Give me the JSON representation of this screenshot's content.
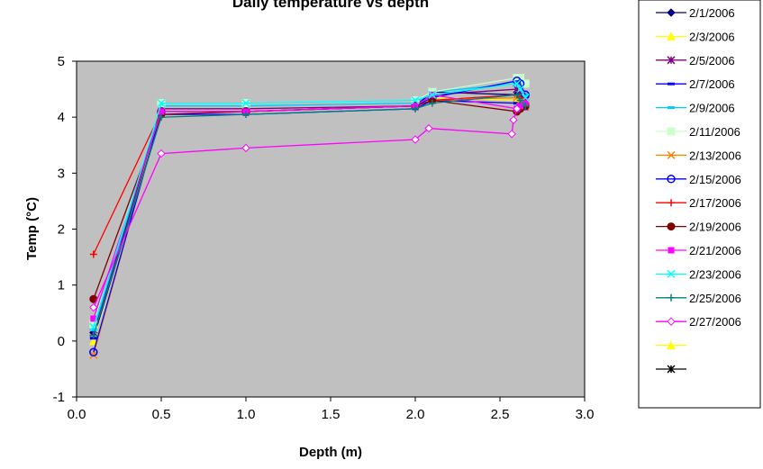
{
  "chart_data": {
    "type": "line",
    "title": "Daily temperature vs depth",
    "xlabel": "Depth (m)",
    "ylabel": "Temp (°C)",
    "xlim": [
      0,
      3
    ],
    "ylim": [
      -1,
      5
    ],
    "x_ticks": [
      "0.0",
      "0.5",
      "1.0",
      "1.5",
      "2.0",
      "2.5",
      "3.0"
    ],
    "y_ticks": [
      "-1",
      "0",
      "1",
      "2",
      "3",
      "4",
      "5"
    ],
    "plot_background": "#c0c0c0",
    "gridlines": false,
    "legend_position": "right",
    "series": [
      {
        "name": "2/1/2006",
        "color": "#000080",
        "marker": "diamond",
        "x": [
          0.1,
          0.5,
          1.0,
          2.0,
          2.1,
          2.6,
          2.62,
          2.65
        ],
        "y": [
          0.15,
          4.1,
          4.1,
          4.2,
          4.45,
          4.4,
          4.3,
          4.25
        ]
      },
      {
        "name": "2/3/2006",
        "color": "#ffff00",
        "marker": "triangle",
        "x": [
          0.1,
          0.5,
          1.0,
          2.0,
          2.1,
          2.6,
          2.62,
          2.65
        ],
        "y": [
          0.0,
          4.1,
          4.1,
          4.2,
          4.35,
          4.3,
          4.3,
          4.2
        ]
      },
      {
        "name": "2/5/2006",
        "color": "#800080",
        "marker": "asterisk",
        "x": [
          0.1,
          0.5,
          1.0,
          2.0,
          2.1,
          2.6,
          2.62,
          2.65
        ],
        "y": [
          0.15,
          4.15,
          4.15,
          4.2,
          4.4,
          4.5,
          4.4,
          4.3
        ]
      },
      {
        "name": "2/7/2006",
        "color": "#0000ff",
        "marker": "dash",
        "x": [
          0.1,
          0.5,
          1.0,
          2.0,
          2.1,
          2.6,
          2.62,
          2.65
        ],
        "y": [
          0.05,
          4.05,
          4.05,
          4.15,
          4.3,
          4.25,
          4.2,
          4.15
        ]
      },
      {
        "name": "2/9/2006",
        "color": "#00ccff",
        "marker": "dash",
        "x": [
          0.1,
          0.5,
          1.0,
          2.0,
          2.1,
          2.6,
          2.62,
          2.65
        ],
        "y": [
          0.2,
          4.2,
          4.2,
          4.25,
          4.45,
          4.6,
          4.55,
          4.4
        ]
      },
      {
        "name": "2/11/2006",
        "color": "#ccffcc",
        "marker": "square",
        "x": [
          0.1,
          0.5,
          1.0,
          2.0,
          2.1,
          2.6,
          2.62,
          2.65
        ],
        "y": [
          0.3,
          4.25,
          4.25,
          4.3,
          4.45,
          4.7,
          4.7,
          4.6
        ]
      },
      {
        "name": "2/13/2006",
        "color": "#ff8000",
        "marker": "x",
        "x": [
          0.1,
          0.5,
          1.0,
          2.0,
          2.1,
          2.6,
          2.62,
          2.65
        ],
        "y": [
          -0.25,
          4.1,
          4.1,
          4.2,
          4.3,
          4.35,
          4.3,
          4.2
        ]
      },
      {
        "name": "2/15/2006",
        "color": "#0000ff",
        "marker": "circle",
        "x": [
          0.1,
          0.5,
          1.0,
          2.0,
          2.1,
          2.6,
          2.62,
          2.65
        ],
        "y": [
          -0.2,
          4.1,
          4.1,
          4.2,
          4.35,
          4.65,
          4.6,
          4.4
        ]
      },
      {
        "name": "2/17/2006",
        "color": "#ff0000",
        "marker": "plus",
        "x": [
          0.1,
          0.5,
          1.0,
          2.0,
          2.1,
          2.6,
          2.62,
          2.65
        ],
        "y": [
          1.55,
          4.1,
          4.1,
          4.2,
          4.3,
          4.4,
          4.35,
          4.3
        ]
      },
      {
        "name": "2/19/2006",
        "color": "#800000",
        "marker": "circle-filled",
        "x": [
          0.1,
          0.5,
          1.0,
          2.0,
          2.1,
          2.6,
          2.62,
          2.65
        ],
        "y": [
          0.75,
          4.05,
          4.1,
          4.2,
          4.3,
          4.1,
          4.15,
          4.2
        ]
      },
      {
        "name": "2/21/2006",
        "color": "#ff00ff",
        "marker": "square-filled",
        "x": [
          0.1,
          0.5,
          1.0,
          2.0,
          2.1,
          2.6,
          2.62,
          2.65
        ],
        "y": [
          0.4,
          4.1,
          4.1,
          4.2,
          4.4,
          4.15,
          4.2,
          4.25
        ]
      },
      {
        "name": "2/23/2006",
        "color": "#00ffff",
        "marker": "x",
        "x": [
          0.1,
          0.5,
          1.0,
          2.0,
          2.1,
          2.6,
          2.62,
          2.65
        ],
        "y": [
          0.25,
          4.25,
          4.25,
          4.3,
          4.4,
          4.6,
          4.5,
          4.35
        ]
      },
      {
        "name": "2/25/2006",
        "color": "#008080",
        "marker": "plus",
        "x": [
          0.1,
          0.5,
          1.0,
          2.0,
          2.1,
          2.6,
          2.62,
          2.65
        ],
        "y": [
          0.1,
          4.0,
          4.05,
          4.15,
          4.25,
          4.4,
          4.3,
          4.2
        ]
      },
      {
        "name": "2/27/2006",
        "color": "#ff00ff",
        "marker": "diamond-open",
        "x": [
          0.1,
          0.5,
          1.0,
          2.0,
          2.08,
          2.57,
          2.58,
          2.6
        ],
        "y": [
          0.6,
          3.35,
          3.45,
          3.6,
          3.8,
          3.7,
          3.95,
          4.15
        ]
      },
      {
        "name": "",
        "color": "#ffff00",
        "marker": "triangle",
        "x": [],
        "y": []
      },
      {
        "name": "",
        "color": "#000000",
        "marker": "asterisk",
        "x": [],
        "y": []
      }
    ]
  }
}
